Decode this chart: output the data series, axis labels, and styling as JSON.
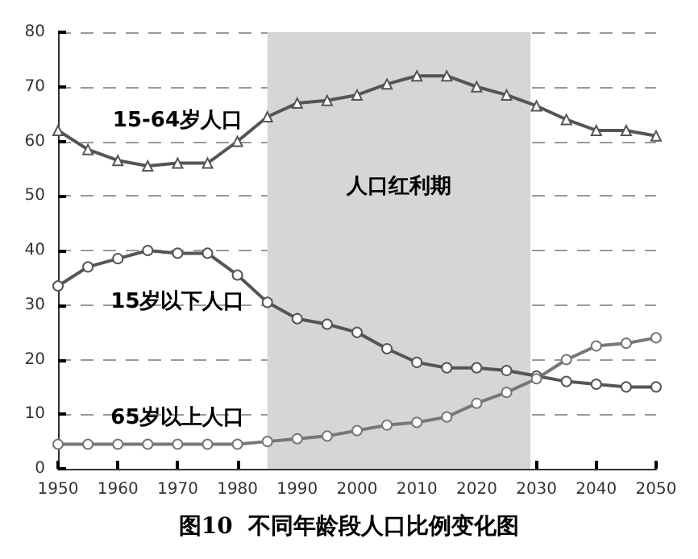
{
  "chart_data": {
    "type": "line",
    "title": "图10  不同年龄段人口比例变化图",
    "x": [
      1950,
      1955,
      1960,
      1965,
      1970,
      1975,
      1980,
      1985,
      1990,
      1995,
      2000,
      2005,
      2010,
      2015,
      2020,
      2025,
      2030,
      2035,
      2040,
      2045,
      2050
    ],
    "series": [
      {
        "name": "15-64岁人口",
        "color": "#555555",
        "marker": "triangle",
        "values": [
          62,
          58.5,
          56.5,
          55.5,
          56,
          56,
          60,
          64.5,
          67,
          67.5,
          68.5,
          70.5,
          72,
          72,
          70,
          68.5,
          66.5,
          64,
          62,
          62,
          61
        ]
      },
      {
        "name": "15岁以下人口",
        "color": "#555555",
        "marker": "circle",
        "values": [
          33.5,
          37,
          38.5,
          40,
          39.5,
          39.5,
          35.5,
          30.5,
          27.5,
          26.5,
          25,
          22,
          19.5,
          18.5,
          18.5,
          18,
          17,
          16,
          15.5,
          15,
          15
        ]
      },
      {
        "name": "65岁以上人口",
        "color": "#777777",
        "marker": "circle",
        "values": [
          4.5,
          4.5,
          4.5,
          4.5,
          4.5,
          4.5,
          4.5,
          5,
          5.5,
          6,
          7,
          8,
          8.5,
          9.5,
          12,
          14,
          16.5,
          20,
          22.5,
          23,
          24
        ]
      }
    ],
    "xlim": [
      1950,
      2050
    ],
    "xticks": [
      1950,
      1960,
      1970,
      1980,
      1990,
      2000,
      2010,
      2020,
      2030,
      2040,
      2050
    ],
    "ylim": [
      0,
      80
    ],
    "yticks": [
      0,
      10,
      20,
      30,
      40,
      50,
      60,
      70,
      80
    ],
    "bands": [
      {
        "axis": "x",
        "from": 1985,
        "to": 2029,
        "label": "人口红利期",
        "color": "#d6d6d6"
      }
    ],
    "grid": "y",
    "legend": false,
    "line_style": "solid"
  }
}
